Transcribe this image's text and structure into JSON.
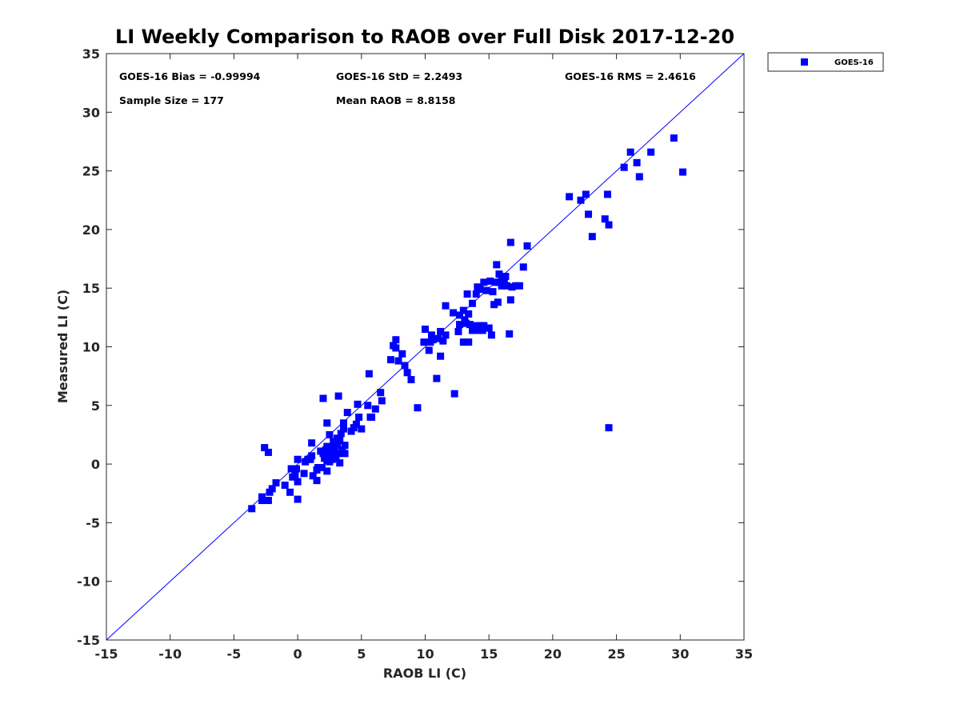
{
  "chart_data": {
    "type": "scatter",
    "title": "LI Weekly Comparison to RAOB over Full Disk 2017-12-20",
    "xlabel": "RAOB LI (C)",
    "ylabel": "Measured LI (C)",
    "xlim": [
      -15,
      35
    ],
    "ylim": [
      -15,
      35
    ],
    "xticks": [
      -15,
      -10,
      -5,
      0,
      5,
      10,
      15,
      20,
      25,
      30,
      35
    ],
    "yticks": [
      -15,
      -10,
      -5,
      0,
      5,
      10,
      15,
      20,
      25,
      30,
      35
    ],
    "xtick_labels": [
      "-15",
      "-10",
      "-5",
      "0",
      "5",
      "10",
      "15",
      "20",
      "25",
      "30",
      "35"
    ],
    "ytick_labels": [
      "-15",
      "-10",
      "-5",
      "0",
      "5",
      "10",
      "15",
      "20",
      "25",
      "30",
      "35"
    ],
    "grid": false,
    "reference_line": {
      "name": "1:1 line",
      "x": [
        -15,
        35
      ],
      "y": [
        -15,
        35
      ],
      "color": "#0000ff"
    },
    "legend": {
      "position": "outside-top-right",
      "entries": [
        "GOES-16"
      ]
    },
    "annotations": [
      "GOES-16 Bias = -0.99994",
      "GOES-16 StD = 2.2493",
      "GOES-16 RMS = 2.4616",
      "Sample Size = 177",
      "Mean RAOB = 8.8158"
    ],
    "series": [
      {
        "name": "GOES-16",
        "color": "#0000ff",
        "marker": "square",
        "points": [
          [
            -3.6,
            -3.8
          ],
          [
            -2.8,
            -3.1
          ],
          [
            -2.8,
            -2.8
          ],
          [
            -2.3,
            -3.1
          ],
          [
            -2.2,
            -2.4
          ],
          [
            -2.0,
            -2.1
          ],
          [
            -1.7,
            -1.6
          ],
          [
            -1.0,
            -1.8
          ],
          [
            -0.6,
            -2.4
          ],
          [
            0.0,
            -3.0
          ],
          [
            -0.5,
            -0.4
          ],
          [
            -0.4,
            -1.1
          ],
          [
            -0.2,
            -0.9
          ],
          [
            -0.1,
            -0.4
          ],
          [
            0.0,
            -1.5
          ],
          [
            0.0,
            0.4
          ],
          [
            0.5,
            -0.8
          ],
          [
            0.6,
            0.2
          ],
          [
            0.8,
            0.4
          ],
          [
            1.0,
            0.4
          ],
          [
            1.1,
            0.7
          ],
          [
            1.2,
            -1.0
          ],
          [
            1.5,
            -1.4
          ],
          [
            1.5,
            -0.5
          ],
          [
            1.6,
            -0.3
          ],
          [
            1.8,
            1.1
          ],
          [
            1.9,
            -0.3
          ],
          [
            2.0,
            0.9
          ],
          [
            2.1,
            0.5
          ],
          [
            2.2,
            1.2
          ],
          [
            2.3,
            -0.6
          ],
          [
            2.3,
            0.3
          ],
          [
            2.3,
            1.5
          ],
          [
            2.4,
            0.6
          ],
          [
            2.4,
            1.0
          ],
          [
            2.5,
            0.2
          ],
          [
            2.5,
            2.5
          ],
          [
            2.6,
            0.8
          ],
          [
            2.6,
            1.4
          ],
          [
            2.7,
            0.4
          ],
          [
            2.7,
            1.1
          ],
          [
            2.8,
            0.7
          ],
          [
            2.8,
            1.9
          ],
          [
            2.9,
            1.3
          ],
          [
            3.0,
            0.5
          ],
          [
            3.1,
            1.6
          ],
          [
            3.1,
            2.2
          ],
          [
            3.2,
            0.9
          ],
          [
            3.3,
            0.1
          ],
          [
            3.3,
            2.0
          ],
          [
            3.4,
            2.6
          ],
          [
            3.5,
            1.2
          ],
          [
            3.6,
            3.0
          ],
          [
            3.6,
            3.5
          ],
          [
            3.7,
            1.6
          ],
          [
            3.7,
            0.9
          ],
          [
            3.9,
            4.4
          ],
          [
            1.1,
            1.8
          ],
          [
            2.0,
            5.6
          ],
          [
            2.3,
            3.5
          ],
          [
            3.2,
            5.8
          ],
          [
            -2.6,
            1.4
          ],
          [
            -2.3,
            1.0
          ],
          [
            4.2,
            2.8
          ],
          [
            4.4,
            3.1
          ],
          [
            4.6,
            3.4
          ],
          [
            4.7,
            5.1
          ],
          [
            4.8,
            4.0
          ],
          [
            5.0,
            3.0
          ],
          [
            5.5,
            5.0
          ],
          [
            5.6,
            7.7
          ],
          [
            5.7,
            4.0
          ],
          [
            5.8,
            4.0
          ],
          [
            6.1,
            4.7
          ],
          [
            6.5,
            6.1
          ],
          [
            6.6,
            5.4
          ],
          [
            7.3,
            8.9
          ],
          [
            7.5,
            10.1
          ],
          [
            7.7,
            10.6
          ],
          [
            7.7,
            9.9
          ],
          [
            7.9,
            8.8
          ],
          [
            8.2,
            9.4
          ],
          [
            8.4,
            8.4
          ],
          [
            8.6,
            7.8
          ],
          [
            8.9,
            7.2
          ],
          [
            9.4,
            4.8
          ],
          [
            9.9,
            10.4
          ],
          [
            10.0,
            11.5
          ],
          [
            10.3,
            9.7
          ],
          [
            10.4,
            10.4
          ],
          [
            10.5,
            11.0
          ],
          [
            10.6,
            10.6
          ],
          [
            10.9,
            7.3
          ],
          [
            11.0,
            10.7
          ],
          [
            11.2,
            9.2
          ],
          [
            11.2,
            11.3
          ],
          [
            11.4,
            10.5
          ],
          [
            11.6,
            11.0
          ],
          [
            11.6,
            13.5
          ],
          [
            12.2,
            12.9
          ],
          [
            12.3,
            6.0
          ],
          [
            12.6,
            11.3
          ],
          [
            12.7,
            11.9
          ],
          [
            12.7,
            12.7
          ],
          [
            13.0,
            10.4
          ],
          [
            13.0,
            13.1
          ],
          [
            13.1,
            12.3
          ],
          [
            13.2,
            12.0
          ],
          [
            13.3,
            14.5
          ],
          [
            13.4,
            10.4
          ],
          [
            13.4,
            12.8
          ],
          [
            13.5,
            11.9
          ],
          [
            13.7,
            11.4
          ],
          [
            13.7,
            13.7
          ],
          [
            14.0,
            11.8
          ],
          [
            14.0,
            14.5
          ],
          [
            14.1,
            15.1
          ],
          [
            14.2,
            11.4
          ],
          [
            14.3,
            14.9
          ],
          [
            14.4,
            11.8
          ],
          [
            14.5,
            11.4
          ],
          [
            14.6,
            11.8
          ],
          [
            14.6,
            15.5
          ],
          [
            14.8,
            14.8
          ],
          [
            15.0,
            11.6
          ],
          [
            15.1,
            15.6
          ],
          [
            15.2,
            11.0
          ],
          [
            15.3,
            14.7
          ],
          [
            15.4,
            13.6
          ],
          [
            15.5,
            15.5
          ],
          [
            15.6,
            17.0
          ],
          [
            15.7,
            13.8
          ],
          [
            15.8,
            16.2
          ],
          [
            15.8,
            15.5
          ],
          [
            16.0,
            15.9
          ],
          [
            16.0,
            15.2
          ],
          [
            16.2,
            15.8
          ],
          [
            16.3,
            16.0
          ],
          [
            16.4,
            15.2
          ],
          [
            16.6,
            11.1
          ],
          [
            16.7,
            18.9
          ],
          [
            16.7,
            14.0
          ],
          [
            16.8,
            15.1
          ],
          [
            17.1,
            15.2
          ],
          [
            17.4,
            15.2
          ],
          [
            17.7,
            16.8
          ],
          [
            18.0,
            18.6
          ],
          [
            21.3,
            22.8
          ],
          [
            22.2,
            22.5
          ],
          [
            22.6,
            23.0
          ],
          [
            22.8,
            21.3
          ],
          [
            23.1,
            19.4
          ],
          [
            24.1,
            20.9
          ],
          [
            24.3,
            23.0
          ],
          [
            24.4,
            20.4
          ],
          [
            24.4,
            3.1
          ],
          [
            25.6,
            25.3
          ],
          [
            26.1,
            26.6
          ],
          [
            26.6,
            25.7
          ],
          [
            26.8,
            24.5
          ],
          [
            27.7,
            26.6
          ],
          [
            29.5,
            27.8
          ],
          [
            30.2,
            24.9
          ]
        ]
      }
    ]
  }
}
